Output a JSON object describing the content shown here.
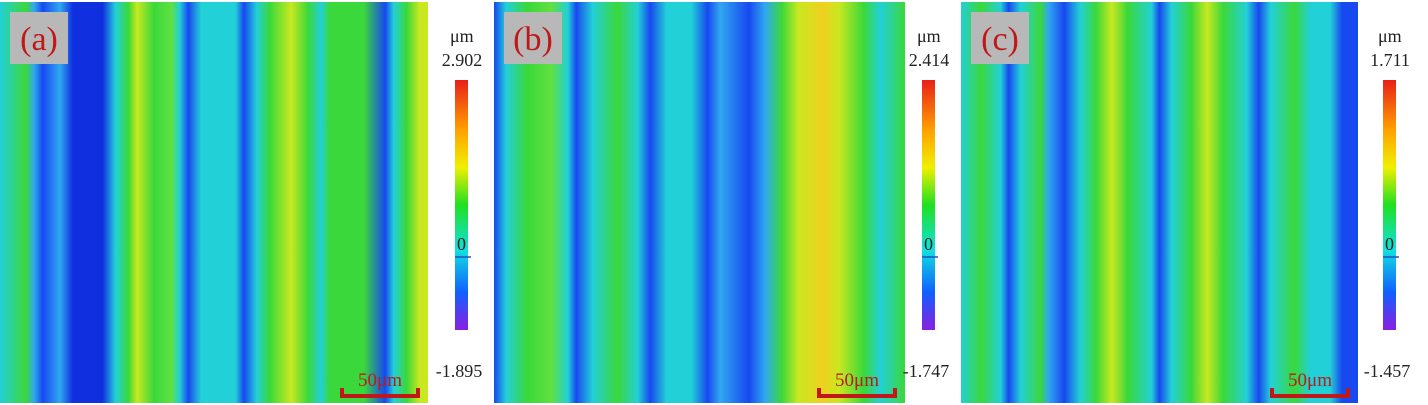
{
  "panels": [
    {
      "label": "(a)",
      "unit": "μm",
      "max": 2.902,
      "zero": 0,
      "min": -1.895,
      "scale_bar": "50μm"
    },
    {
      "label": "(b)",
      "unit": "μm",
      "max": 2.414,
      "zero": 0,
      "min": -1.747,
      "scale_bar": "50μm"
    },
    {
      "label": "(c)",
      "unit": "μm",
      "max": 1.711,
      "zero": 0,
      "min": -1.457,
      "scale_bar": "50μm"
    }
  ]
}
